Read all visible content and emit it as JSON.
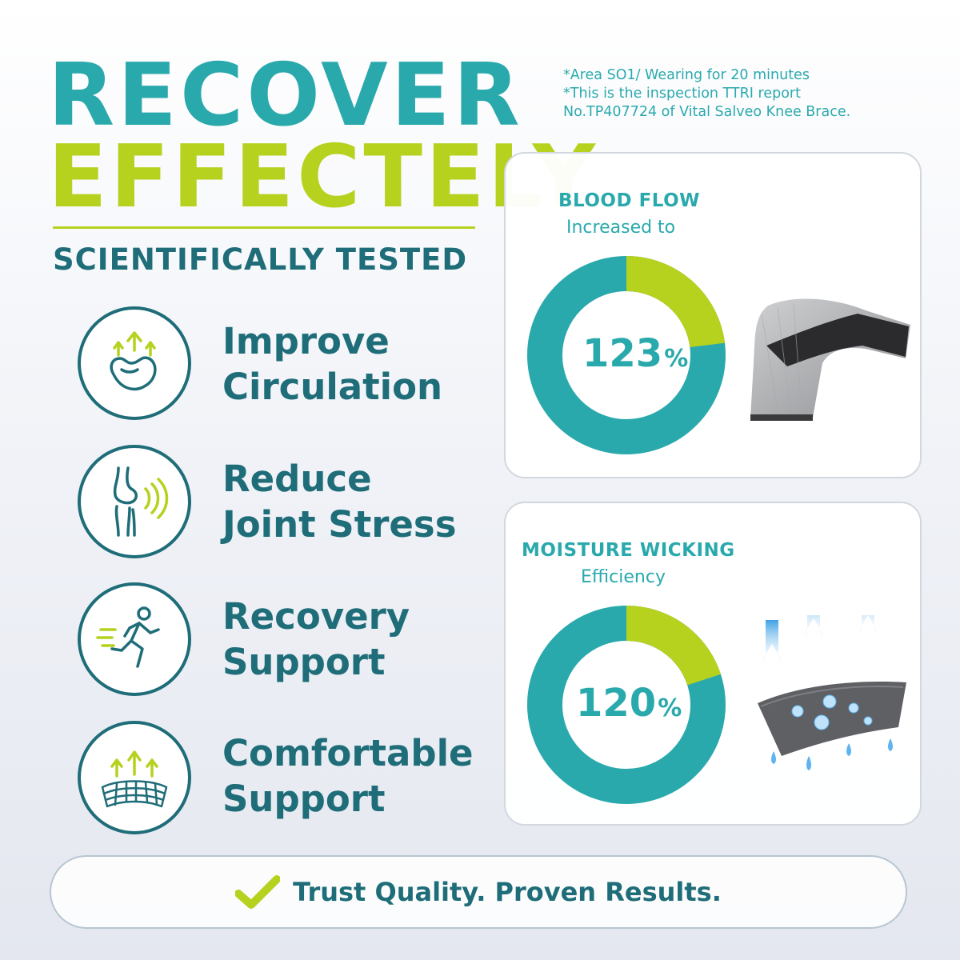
{
  "headline": {
    "line1": "RECOVER",
    "line2": "EFFECTELY",
    "subhead": "SCIENTIFICALLY TESTED"
  },
  "footnotes": {
    "line1": "*Area SO1/ Wearing for 20 minutes",
    "line2": "*This is the inspection TTRI report",
    "line3": "No.TP407724 of Vital Salveo Knee Brace."
  },
  "benefits": [
    {
      "icon": "muscle-circulation-icon",
      "line1": "Improve",
      "line2": "Circulation"
    },
    {
      "icon": "knee-joint-icon",
      "line1": "Reduce",
      "line2": "Joint Stress"
    },
    {
      "icon": "running-person-icon",
      "line1": "Recovery",
      "line2": "Support"
    },
    {
      "icon": "breathable-mesh-icon",
      "line1": "Comfortable",
      "line2": "Support"
    }
  ],
  "stats": [
    {
      "title": "BLOOD FLOW",
      "subtitle": "Increased to",
      "value": "123",
      "unit": "%",
      "fill_fraction": 0.23,
      "image": "elbow-brace-image"
    },
    {
      "title": "MOISTURE WICKING",
      "subtitle": "Efficiency",
      "value": "120",
      "unit": "%",
      "fill_fraction": 0.2,
      "image": "moisture-fabric-image"
    }
  ],
  "banner": {
    "icon": "checkmark-icon",
    "text": "Trust Quality. Proven Results."
  },
  "colors": {
    "teal": "#2aa9ad",
    "dark_teal": "#1e6d78",
    "lime": "#b7d11f"
  }
}
